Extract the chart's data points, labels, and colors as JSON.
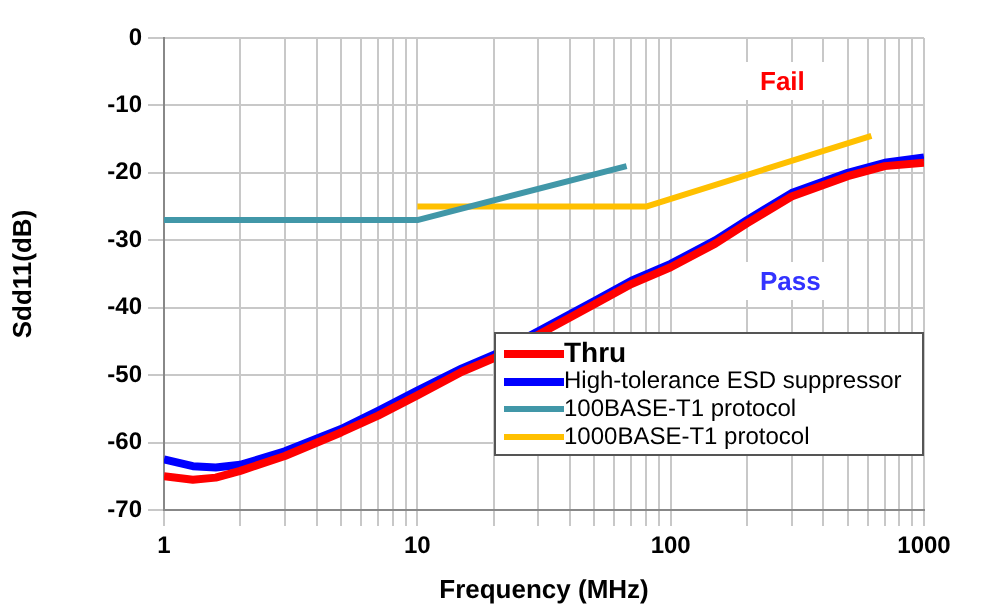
{
  "chart_data": {
    "type": "line",
    "xlabel": "Frequency (MHz)",
    "ylabel": "Sdd11(dB)",
    "log": "x",
    "xlim": [
      1,
      1000
    ],
    "xticks": [
      1,
      {
        "value": 2,
        "label": null
      },
      {
        "value": 3,
        "label": null
      },
      {
        "value": 4,
        "label": null
      },
      {
        "value": 5,
        "label": null
      },
      {
        "value": 6,
        "label": null
      },
      {
        "value": 7,
        "label": null
      },
      {
        "value": 8,
        "label": null
      },
      {
        "value": 9,
        "label": null
      },
      10,
      {
        "value": 20,
        "label": null
      },
      {
        "value": 30,
        "label": null
      },
      {
        "value": 40,
        "label": null
      },
      {
        "value": 50,
        "label": null
      },
      {
        "value": 60,
        "label": null
      },
      {
        "value": 70,
        "label": null
      },
      {
        "value": 80,
        "label": null
      },
      {
        "value": 90,
        "label": null
      },
      100,
      {
        "value": 200,
        "label": null
      },
      {
        "value": 300,
        "label": null
      },
      {
        "value": 400,
        "label": null
      },
      {
        "value": 500,
        "label": null
      },
      {
        "value": 600,
        "label": null
      },
      {
        "value": 700,
        "label": null
      },
      {
        "value": 800,
        "label": null
      },
      {
        "value": 900,
        "label": null
      },
      1000
    ],
    "ylim": [
      -70,
      0
    ],
    "yticks": [
      -70,
      -60,
      -50,
      -40,
      -30,
      -20,
      -10,
      0
    ],
    "grid": true,
    "legend": "bottom right",
    "marker": "none",
    "series": [
      {
        "name": "Thru",
        "color": "#ff0000",
        "x": [
          1,
          1.3,
          1.6,
          2,
          3,
          5,
          7,
          10,
          15,
          20,
          30,
          50,
          70,
          100,
          150,
          200,
          300,
          500,
          700,
          1000
        ],
        "values": [
          -65,
          -65.5,
          -65.2,
          -64.2,
          -62,
          -58.5,
          -56,
          -53,
          -49.5,
          -47.5,
          -44,
          -39.5,
          -36.5,
          -34,
          -30.5,
          -27.5,
          -23.5,
          -20.5,
          -19,
          -18.5
        ]
      },
      {
        "name": "High-tolerance ESD suppressor",
        "color": "#0000ff",
        "x": [
          1,
          1.3,
          1.6,
          2,
          3,
          5,
          7,
          10,
          15,
          20,
          30,
          50,
          70,
          100,
          150,
          200,
          300,
          500,
          700,
          1000
        ],
        "values": [
          -62.5,
          -63.5,
          -63.7,
          -63.3,
          -61.3,
          -58,
          -55.3,
          -52.3,
          -49,
          -47,
          -43.5,
          -39,
          -36,
          -33.5,
          -30,
          -27,
          -23,
          -20,
          -18.5,
          -17.7
        ]
      },
      {
        "name": "100BASE-T1 protocol",
        "color": "#4197a8",
        "x": [
          1,
          10,
          67
        ],
        "values": [
          -27,
          -27,
          -19
        ]
      },
      {
        "name": "1000BASE-T1 protocol",
        "color": "#ffc000",
        "x": [
          10,
          80,
          620
        ],
        "values": [
          -25,
          -25,
          -14.5
        ]
      }
    ],
    "annotations": [
      "Fail",
      "Pass"
    ]
  }
}
